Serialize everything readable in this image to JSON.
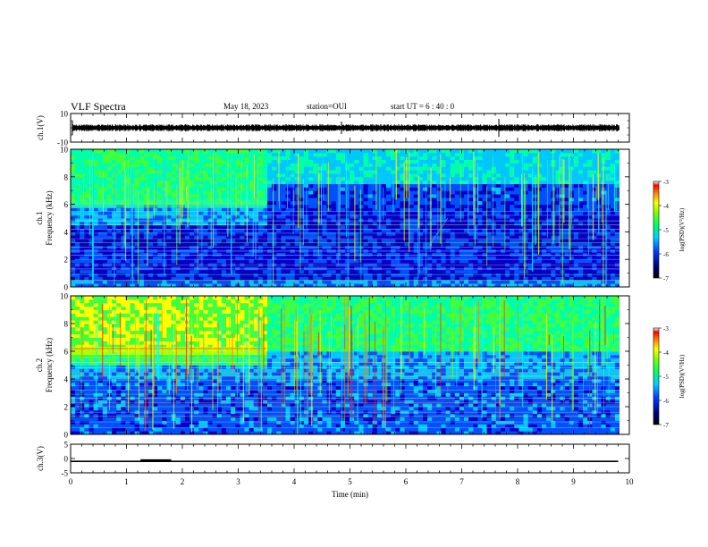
{
  "header": {
    "title": "VLF Spectra",
    "date": "May 18, 2023",
    "station": "station=OUl",
    "start_ut": "start UT =  6 : 40 : 0"
  },
  "chart_data": [
    {
      "id": "ch1-waveform",
      "type": "line",
      "ylabel": "ch.1(V)",
      "ylim": [
        -10,
        10
      ],
      "y_ticks": [
        "10",
        "-10"
      ],
      "xlim": [
        0,
        10
      ],
      "trace_level": 0,
      "color": "#000000"
    },
    {
      "id": "ch1-spectrogram",
      "type": "heatmap",
      "ylabel": "ch.1\nFrequency (kHz)",
      "ylim": [
        0,
        10
      ],
      "y_ticks": [
        "0",
        "2",
        "4",
        "6",
        "8",
        "10"
      ],
      "xlim": [
        0,
        10
      ],
      "colorbar": {
        "label": "log(PSD)(V²/Hz)",
        "range": [
          -7,
          -3
        ],
        "ticks": [
          "-3",
          "-4",
          "-5",
          "-6",
          "-7"
        ]
      },
      "band_edge_khz_before_3_5min": 6
    },
    {
      "id": "ch2-spectrogram",
      "type": "heatmap",
      "ylabel": "ch.2\nFrequency (kHz)",
      "ylim": [
        0,
        10
      ],
      "y_ticks": [
        "0",
        "2",
        "4",
        "6",
        "8",
        "10"
      ],
      "xlim": [
        0,
        10
      ],
      "colorbar": {
        "label": "log(PSD)(V²/Hz)",
        "range": [
          -7,
          -3
        ],
        "ticks": [
          "-3",
          "-4",
          "-5",
          "-6",
          "-7"
        ]
      },
      "band_edge_khz_before_3_5min": 6
    },
    {
      "id": "ch3-trace",
      "type": "line",
      "ylabel": "ch.3(V)",
      "ylim": [
        -5,
        5
      ],
      "y_ticks": [
        "5",
        "0",
        "-5"
      ],
      "xlim": [
        0,
        10
      ],
      "trace_level": -1,
      "pulse": {
        "x_start": 1.25,
        "x_end": 1.8,
        "level": -0.6
      },
      "x_ticks": [
        "0",
        "1",
        "2",
        "3",
        "4",
        "5",
        "6",
        "7",
        "8",
        "9",
        "10"
      ],
      "xlabel": "Time (min)",
      "trace_end_min": 9.8
    }
  ],
  "colormap": [
    "#00005a",
    "#0000c8",
    "#0050ff",
    "#00c8ff",
    "#00ffaa",
    "#40ff40",
    "#ffff00",
    "#ffa000",
    "#ff2000",
    "#a00000"
  ]
}
